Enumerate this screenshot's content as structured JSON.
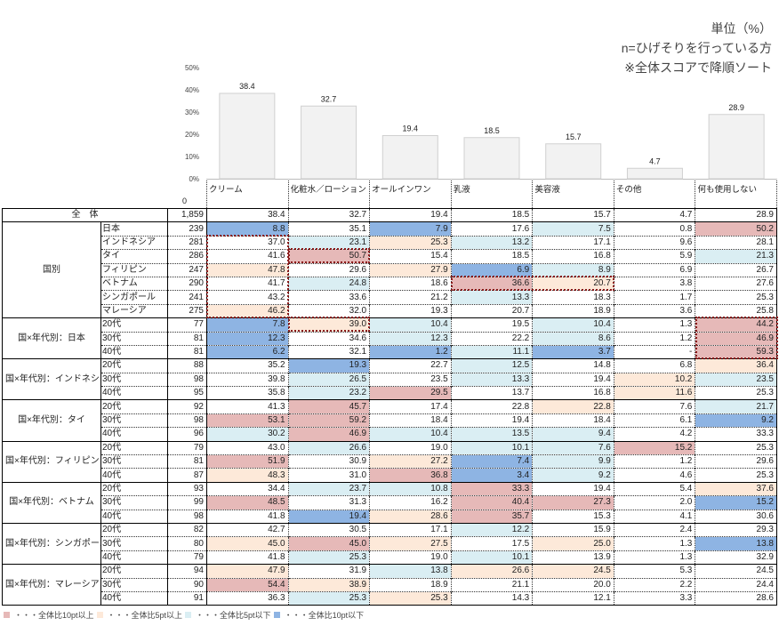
{
  "notes": [
    "単位（%）",
    "n=ひげそりを行っている方",
    "※全体スコアで降順ソート"
  ],
  "chart_data": {
    "type": "bar",
    "categories": [
      "クリーム",
      "化粧水／ローション",
      "オールインワン",
      "乳液",
      "美容液",
      "その他",
      "何も使用しない"
    ],
    "values": [
      38.4,
      32.7,
      19.4,
      18.5,
      15.7,
      4.7,
      28.9
    ],
    "ylim": [
      0,
      50
    ],
    "yticks": [
      "0%",
      "10%",
      "20%",
      "30%",
      "40%",
      "50%"
    ],
    "n_axis_label": "0",
    "grid": false
  },
  "colors": {
    "P": "#e6b9b8",
    "O": "#fde9d9",
    "B": "#daeef3",
    "D": "#8eb4e3"
  },
  "groups": [
    {
      "label": "全　体",
      "rows": [
        {
          "sub": "",
          "n": "1,859",
          "v": [
            "38.4",
            "32.7",
            "19.4",
            "18.5",
            "15.7",
            "4.7",
            "28.9"
          ],
          "c": "_______"
        }
      ]
    },
    {
      "label": "国別",
      "rows": [
        {
          "sub": "日本",
          "n": "239",
          "v": [
            "8.8",
            "35.1",
            "7.9",
            "17.6",
            "7.5",
            "0.8",
            "50.2"
          ],
          "c": "D_D_B_P"
        },
        {
          "sub": "インドネシア",
          "n": "281",
          "v": [
            "37.0",
            "23.1",
            "25.3",
            "13.2",
            "17.1",
            "9.6",
            "28.1"
          ],
          "c": "_BOB___"
        },
        {
          "sub": "タイ",
          "n": "286",
          "v": [
            "41.6",
            "50.7",
            "15.4",
            "18.5",
            "16.8",
            "5.9",
            "21.3"
          ],
          "c": "_P____B"
        },
        {
          "sub": "フィリピン",
          "n": "247",
          "v": [
            "47.8",
            "29.6",
            "27.9",
            "6.9",
            "8.9",
            "6.9",
            "26.7"
          ],
          "c": "O_ODB__"
        },
        {
          "sub": "ベトナム",
          "n": "290",
          "v": [
            "41.7",
            "24.8",
            "18.6",
            "36.6",
            "20.7",
            "3.8",
            "27.6"
          ],
          "c": "_B_PO__"
        },
        {
          "sub": "シンガポール",
          "n": "241",
          "v": [
            "43.2",
            "33.6",
            "21.2",
            "13.3",
            "18.3",
            "1.7",
            "25.3"
          ],
          "c": "___B___"
        },
        {
          "sub": "マレーシア",
          "n": "275",
          "v": [
            "46.2",
            "32.0",
            "19.3",
            "20.7",
            "18.9",
            "3.6",
            "25.8"
          ],
          "c": "O______"
        }
      ]
    },
    {
      "label": "国×年代別：日本",
      "rows": [
        {
          "sub": "20代",
          "n": "77",
          "v": [
            "7.8",
            "39.0",
            "10.4",
            "19.5",
            "10.4",
            "1.3",
            "44.2"
          ],
          "c": "DOB_B_P"
        },
        {
          "sub": "30代",
          "n": "81",
          "v": [
            "12.3",
            "34.6",
            "12.3",
            "22.2",
            "8.6",
            "1.2",
            "46.9"
          ],
          "c": "D_B_B_P"
        },
        {
          "sub": "40代",
          "n": "81",
          "v": [
            "6.2",
            "32.1",
            "1.2",
            "11.1",
            "3.7",
            "-",
            "59.3"
          ],
          "c": "D_DBD_P"
        }
      ]
    },
    {
      "label": "国×年代別：インドネシア",
      "rows": [
        {
          "sub": "20代",
          "n": "88",
          "v": [
            "35.2",
            "19.3",
            "22.7",
            "12.5",
            "14.8",
            "6.8",
            "36.4"
          ],
          "c": "_D_B__O"
        },
        {
          "sub": "30代",
          "n": "98",
          "v": [
            "39.8",
            "26.5",
            "23.5",
            "13.3",
            "19.4",
            "10.2",
            "23.5"
          ],
          "c": "_B_B_OB"
        },
        {
          "sub": "40代",
          "n": "95",
          "v": [
            "35.8",
            "23.2",
            "29.5",
            "13.7",
            "16.8",
            "11.6",
            "25.3"
          ],
          "c": "_BP__O_"
        }
      ]
    },
    {
      "label": "国×年代別：タイ",
      "rows": [
        {
          "sub": "20代",
          "n": "92",
          "v": [
            "41.3",
            "45.7",
            "17.4",
            "22.8",
            "22.8",
            "7.6",
            "21.7"
          ],
          "c": "_P__O_B"
        },
        {
          "sub": "30代",
          "n": "98",
          "v": [
            "53.1",
            "59.2",
            "18.4",
            "19.4",
            "18.4",
            "6.1",
            "9.2"
          ],
          "c": "PP____D"
        },
        {
          "sub": "40代",
          "n": "96",
          "v": [
            "30.2",
            "46.9",
            "10.4",
            "13.5",
            "9.4",
            "4.2",
            "33.3"
          ],
          "c": "BPBBB__"
        }
      ]
    },
    {
      "label": "国×年代別：フィリピン",
      "rows": [
        {
          "sub": "20代",
          "n": "79",
          "v": [
            "43.0",
            "26.6",
            "19.0",
            "10.1",
            "7.6",
            "15.2",
            "25.3"
          ],
          "c": "_B_BBP_"
        },
        {
          "sub": "30代",
          "n": "81",
          "v": [
            "51.9",
            "30.9",
            "27.2",
            "7.4",
            "9.9",
            "1.2",
            "29.6"
          ],
          "c": "P_ODB__"
        },
        {
          "sub": "40代",
          "n": "87",
          "v": [
            "48.3",
            "31.0",
            "36.8",
            "3.4",
            "9.2",
            "4.6",
            "25.3"
          ],
          "c": "O_PDB__"
        }
      ]
    },
    {
      "label": "国×年代別：ベトナム",
      "rows": [
        {
          "sub": "20代",
          "n": "93",
          "v": [
            "34.4",
            "23.7",
            "10.8",
            "33.3",
            "19.4",
            "5.4",
            "37.6"
          ],
          "c": "_BBP__O"
        },
        {
          "sub": "30代",
          "n": "99",
          "v": [
            "48.5",
            "31.3",
            "16.2",
            "40.4",
            "27.3",
            "2.0",
            "15.2"
          ],
          "c": "P__PP_D"
        },
        {
          "sub": "40代",
          "n": "98",
          "v": [
            "41.8",
            "19.4",
            "28.6",
            "35.7",
            "15.3",
            "4.1",
            "30.6"
          ],
          "c": "_DOP___"
        }
      ]
    },
    {
      "label": "国×年代別：シンガポール",
      "rows": [
        {
          "sub": "20代",
          "n": "82",
          "v": [
            "42.7",
            "30.5",
            "17.1",
            "12.2",
            "15.9",
            "2.4",
            "29.3"
          ],
          "c": "___B___"
        },
        {
          "sub": "30代",
          "n": "80",
          "v": [
            "45.0",
            "45.0",
            "27.5",
            "17.5",
            "25.0",
            "1.3",
            "13.8"
          ],
          "c": "OPO_O_D"
        },
        {
          "sub": "40代",
          "n": "79",
          "v": [
            "41.8",
            "25.3",
            "19.0",
            "10.1",
            "13.9",
            "1.3",
            "32.9"
          ],
          "c": "_B_B___"
        }
      ]
    },
    {
      "label": "国×年代別：マレーシア",
      "rows": [
        {
          "sub": "20代",
          "n": "94",
          "v": [
            "47.9",
            "31.9",
            "13.8",
            "26.6",
            "24.5",
            "5.3",
            "24.5"
          ],
          "c": "O_BOO__"
        },
        {
          "sub": "30代",
          "n": "90",
          "v": [
            "54.4",
            "38.9",
            "18.9",
            "21.1",
            "20.0",
            "2.2",
            "24.4"
          ],
          "c": "PO_____"
        },
        {
          "sub": "40代",
          "n": "91",
          "v": [
            "36.3",
            "25.3",
            "25.3",
            "14.3",
            "12.1",
            "3.3",
            "28.6"
          ],
          "c": "_BO____"
        }
      ]
    }
  ],
  "legend": [
    {
      "code": "P",
      "label": "・・・全体比10pt以上"
    },
    {
      "code": "O",
      "label": "・・・全体比5pt以上"
    },
    {
      "code": "B",
      "label": "・・・全体比5pt以下"
    },
    {
      "code": "D",
      "label": "・・・全体比10pt以下"
    }
  ]
}
